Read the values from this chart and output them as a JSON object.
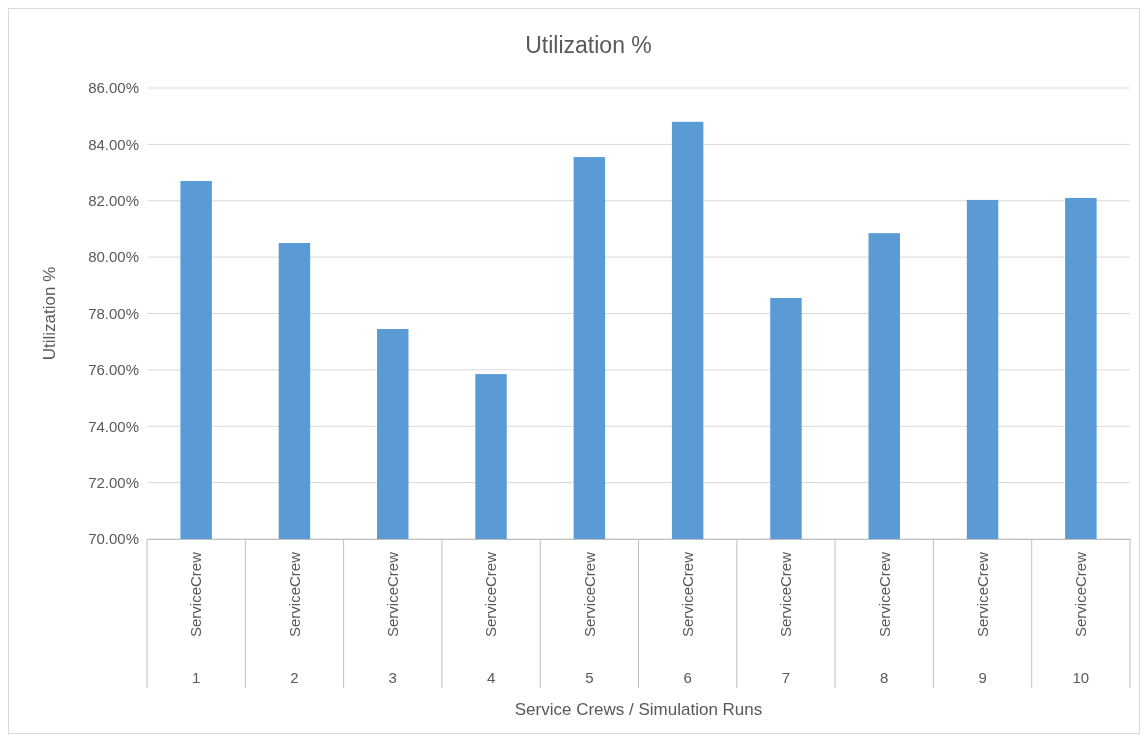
{
  "chart_data": {
    "type": "bar",
    "title": "Utilization %",
    "xlabel": "Service Crews / Simulation Runs",
    "ylabel": "Utilization %",
    "categories": [
      "ServiceCrew",
      "ServiceCrew",
      "ServiceCrew",
      "ServiceCrew",
      "ServiceCrew",
      "ServiceCrew",
      "ServiceCrew",
      "ServiceCrew",
      "ServiceCrew",
      "ServiceCrew"
    ],
    "values": [
      82.7,
      80.5,
      77.45,
      75.85,
      83.55,
      84.8,
      78.55,
      80.85,
      82.03,
      82.1
    ],
    "color": "#5b9bd5",
    "ylim": [
      70,
      86
    ],
    "yticks": [
      {
        "value": 70,
        "label": "70.00%"
      },
      {
        "value": 72,
        "label": "72.00%"
      },
      {
        "value": 74,
        "label": "74.00%"
      },
      {
        "value": 76,
        "label": "76.00%"
      },
      {
        "value": 78,
        "label": "78.00%"
      },
      {
        "value": 80,
        "label": "80.00%"
      },
      {
        "value": 82,
        "label": "82.00%"
      },
      {
        "value": 84,
        "label": "84.00%"
      },
      {
        "value": 86,
        "label": "86.00%"
      }
    ],
    "grid": "y",
    "annotations": [
      "1",
      "2",
      "3",
      "4",
      "5",
      "6",
      "7",
      "8",
      "9",
      "10"
    ]
  }
}
